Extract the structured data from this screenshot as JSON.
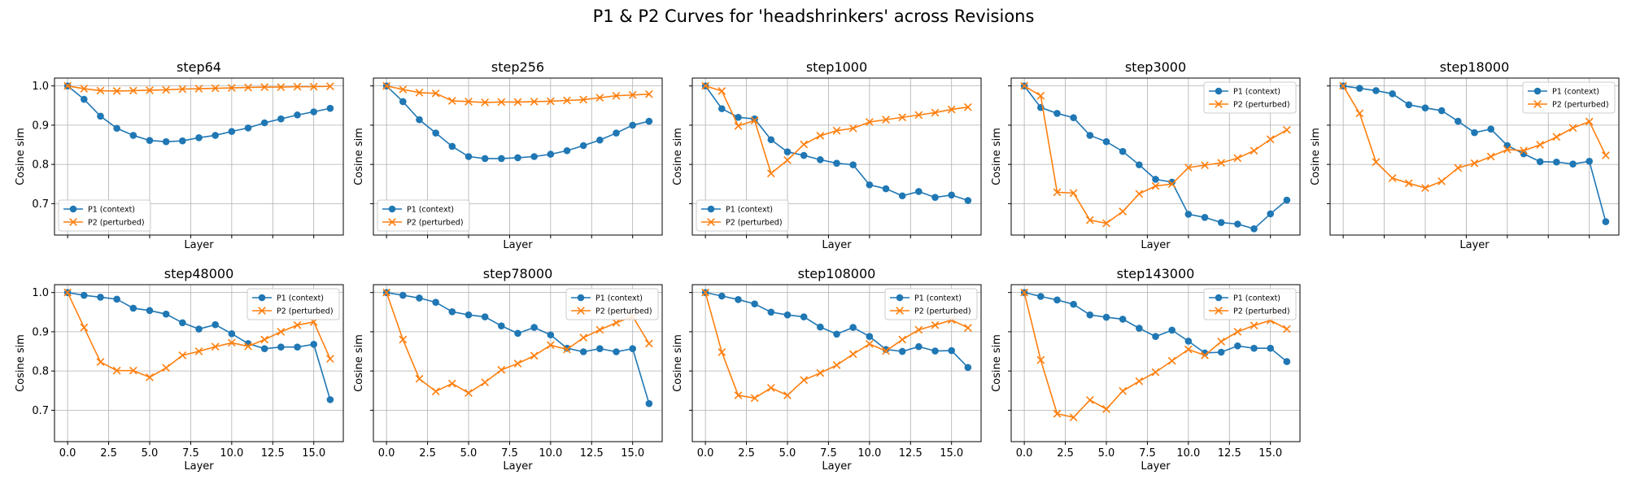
{
  "title": "P1 & P2 Curves for 'headshrinkers' across Revisions",
  "colors": {
    "p1": "#1f77b4",
    "p2": "#ff7f0e",
    "grid": "#b0b0b0"
  },
  "chart_data": [
    {
      "type": "line",
      "title": "step64",
      "xlabel": "Layer",
      "ylabel": "Cosine sim",
      "xlim": [
        -0.8,
        16.8
      ],
      "ylim": [
        0.62,
        1.02
      ],
      "x_ticks_labeled": false,
      "y_ticks_labeled": true,
      "legend": "lower left",
      "x": [
        0,
        1,
        2,
        3,
        4,
        5,
        6,
        7,
        8,
        9,
        10,
        11,
        12,
        13,
        14,
        15,
        16
      ],
      "series": [
        {
          "name": "P1 (context)",
          "marker": "o",
          "values": [
            1.0,
            0.966,
            0.923,
            0.892,
            0.874,
            0.861,
            0.858,
            0.86,
            0.868,
            0.874,
            0.884,
            0.893,
            0.906,
            0.916,
            0.926,
            0.934,
            0.943
          ]
        },
        {
          "name": "P2 (perturbed)",
          "marker": "x",
          "values": [
            1.0,
            0.993,
            0.988,
            0.987,
            0.988,
            0.989,
            0.99,
            0.992,
            0.993,
            0.994,
            0.995,
            0.996,
            0.997,
            0.997,
            0.998,
            0.998,
            0.999
          ]
        }
      ]
    },
    {
      "type": "line",
      "title": "step256",
      "xlabel": "Layer",
      "ylabel": "Cosine sim",
      "xlim": [
        -0.8,
        16.8
      ],
      "ylim": [
        0.62,
        1.02
      ],
      "x_ticks_labeled": false,
      "y_ticks_labeled": false,
      "legend": "lower left",
      "x": [
        0,
        1,
        2,
        3,
        4,
        5,
        6,
        7,
        8,
        9,
        10,
        11,
        12,
        13,
        14,
        15,
        16
      ],
      "series": [
        {
          "name": "P1 (context)",
          "marker": "o",
          "values": [
            1.0,
            0.96,
            0.914,
            0.88,
            0.846,
            0.82,
            0.815,
            0.815,
            0.817,
            0.82,
            0.826,
            0.835,
            0.848,
            0.862,
            0.88,
            0.9,
            0.91
          ]
        },
        {
          "name": "P2 (perturbed)",
          "marker": "x",
          "values": [
            1.0,
            0.991,
            0.983,
            0.981,
            0.962,
            0.96,
            0.958,
            0.959,
            0.959,
            0.96,
            0.961,
            0.963,
            0.965,
            0.97,
            0.975,
            0.977,
            0.979
          ]
        }
      ]
    },
    {
      "type": "line",
      "title": "step1000",
      "xlabel": "Layer",
      "ylabel": "Cosine sim",
      "xlim": [
        -0.8,
        16.8
      ],
      "ylim": [
        0.62,
        1.02
      ],
      "x_ticks_labeled": false,
      "y_ticks_labeled": false,
      "legend": "lower left",
      "x": [
        0,
        1,
        2,
        3,
        4,
        5,
        6,
        7,
        8,
        9,
        10,
        11,
        12,
        13,
        14,
        15,
        16
      ],
      "series": [
        {
          "name": "P1 (context)",
          "marker": "o",
          "values": [
            1.0,
            0.942,
            0.92,
            0.916,
            0.863,
            0.832,
            0.823,
            0.812,
            0.803,
            0.799,
            0.748,
            0.738,
            0.72,
            0.731,
            0.716,
            0.722,
            0.708
          ]
        },
        {
          "name": "P2 (perturbed)",
          "marker": "x",
          "values": [
            1.0,
            0.987,
            0.898,
            0.912,
            0.777,
            0.811,
            0.851,
            0.873,
            0.886,
            0.892,
            0.908,
            0.914,
            0.92,
            0.926,
            0.932,
            0.94,
            0.946
          ]
        }
      ]
    },
    {
      "type": "line",
      "title": "step3000",
      "xlabel": "Layer",
      "ylabel": "Cosine sim",
      "xlim": [
        -0.8,
        16.8
      ],
      "ylim": [
        0.62,
        1.02
      ],
      "x_ticks_labeled": false,
      "y_ticks_labeled": false,
      "legend": "upper right",
      "x": [
        0,
        1,
        2,
        3,
        4,
        5,
        6,
        7,
        8,
        9,
        10,
        11,
        12,
        13,
        14,
        15,
        16
      ],
      "series": [
        {
          "name": "P1 (context)",
          "marker": "o",
          "values": [
            1.0,
            0.945,
            0.93,
            0.919,
            0.874,
            0.858,
            0.833,
            0.799,
            0.762,
            0.755,
            0.673,
            0.665,
            0.652,
            0.648,
            0.636,
            0.674,
            0.709
          ]
        },
        {
          "name": "P2 (perturbed)",
          "marker": "x",
          "values": [
            1.0,
            0.975,
            0.729,
            0.727,
            0.658,
            0.65,
            0.68,
            0.725,
            0.745,
            0.75,
            0.792,
            0.798,
            0.804,
            0.816,
            0.835,
            0.864,
            0.888
          ]
        }
      ]
    },
    {
      "type": "line",
      "title": "step18000",
      "xlabel": "Layer",
      "ylabel": "Cosine sim",
      "xlim": [
        -0.8,
        16.8
      ],
      "ylim": [
        0.62,
        1.02
      ],
      "x_ticks_labeled": false,
      "y_ticks_labeled": false,
      "legend": "upper right",
      "x": [
        0,
        1,
        2,
        3,
        4,
        5,
        6,
        7,
        8,
        9,
        10,
        11,
        12,
        13,
        14,
        15,
        16
      ],
      "series": [
        {
          "name": "P1 (context)",
          "marker": "o",
          "values": [
            1.0,
            0.994,
            0.988,
            0.98,
            0.952,
            0.944,
            0.937,
            0.91,
            0.881,
            0.89,
            0.848,
            0.827,
            0.807,
            0.806,
            0.801,
            0.808,
            0.654
          ]
        },
        {
          "name": "P2 (perturbed)",
          "marker": "x",
          "values": [
            1.0,
            0.93,
            0.806,
            0.765,
            0.752,
            0.74,
            0.757,
            0.791,
            0.803,
            0.82,
            0.838,
            0.835,
            0.85,
            0.87,
            0.893,
            0.909,
            0.823
          ]
        }
      ]
    },
    {
      "type": "line",
      "title": "step48000",
      "xlabel": "Layer",
      "ylabel": "Cosine sim",
      "xlim": [
        -0.8,
        16.8
      ],
      "ylim": [
        0.62,
        1.02
      ],
      "x_ticks_labeled": true,
      "y_ticks_labeled": true,
      "legend": "upper right",
      "x": [
        0,
        1,
        2,
        3,
        4,
        5,
        6,
        7,
        8,
        9,
        10,
        11,
        12,
        13,
        14,
        15,
        16
      ],
      "series": [
        {
          "name": "P1 (context)",
          "marker": "o",
          "values": [
            1.0,
            0.993,
            0.988,
            0.983,
            0.96,
            0.954,
            0.945,
            0.923,
            0.907,
            0.918,
            0.895,
            0.87,
            0.857,
            0.861,
            0.861,
            0.868,
            0.727
          ]
        },
        {
          "name": "P2 (perturbed)",
          "marker": "x",
          "values": [
            1.0,
            0.911,
            0.823,
            0.801,
            0.801,
            0.784,
            0.808,
            0.84,
            0.85,
            0.862,
            0.872,
            0.863,
            0.88,
            0.9,
            0.917,
            0.925,
            0.831
          ]
        }
      ]
    },
    {
      "type": "line",
      "title": "step78000",
      "xlabel": "Layer",
      "ylabel": "Cosine sim",
      "xlim": [
        -0.8,
        16.8
      ],
      "ylim": [
        0.62,
        1.02
      ],
      "x_ticks_labeled": true,
      "y_ticks_labeled": false,
      "legend": "upper right",
      "x": [
        0,
        1,
        2,
        3,
        4,
        5,
        6,
        7,
        8,
        9,
        10,
        11,
        12,
        13,
        14,
        15,
        16
      ],
      "series": [
        {
          "name": "P1 (context)",
          "marker": "o",
          "values": [
            1.0,
            0.993,
            0.986,
            0.975,
            0.951,
            0.943,
            0.938,
            0.915,
            0.896,
            0.911,
            0.892,
            0.858,
            0.849,
            0.857,
            0.849,
            0.857,
            0.717
          ]
        },
        {
          "name": "P2 (perturbed)",
          "marker": "x",
          "values": [
            1.0,
            0.88,
            0.78,
            0.748,
            0.768,
            0.744,
            0.771,
            0.803,
            0.819,
            0.839,
            0.866,
            0.855,
            0.885,
            0.905,
            0.923,
            0.939,
            0.87
          ]
        }
      ]
    },
    {
      "type": "line",
      "title": "step108000",
      "xlabel": "Layer",
      "ylabel": "Cosine sim",
      "xlim": [
        -0.8,
        16.8
      ],
      "ylim": [
        0.62,
        1.02
      ],
      "x_ticks_labeled": true,
      "y_ticks_labeled": false,
      "legend": "upper right",
      "x": [
        0,
        1,
        2,
        3,
        4,
        5,
        6,
        7,
        8,
        9,
        10,
        11,
        12,
        13,
        14,
        15,
        16
      ],
      "series": [
        {
          "name": "P1 (context)",
          "marker": "o",
          "values": [
            1.0,
            0.991,
            0.982,
            0.971,
            0.95,
            0.943,
            0.938,
            0.912,
            0.894,
            0.911,
            0.888,
            0.855,
            0.85,
            0.862,
            0.851,
            0.852,
            0.809
          ]
        },
        {
          "name": "P2 (perturbed)",
          "marker": "x",
          "values": [
            1.0,
            0.848,
            0.738,
            0.731,
            0.757,
            0.738,
            0.777,
            0.795,
            0.815,
            0.843,
            0.869,
            0.851,
            0.88,
            0.905,
            0.917,
            0.93,
            0.91
          ]
        }
      ]
    },
    {
      "type": "line",
      "title": "step143000",
      "xlabel": "Layer",
      "ylabel": "Cosine sim",
      "xlim": [
        -0.8,
        16.8
      ],
      "ylim": [
        0.62,
        1.02
      ],
      "x_ticks_labeled": true,
      "y_ticks_labeled": false,
      "legend": "upper right",
      "x": [
        0,
        1,
        2,
        3,
        4,
        5,
        6,
        7,
        8,
        9,
        10,
        11,
        12,
        13,
        14,
        15,
        16
      ],
      "series": [
        {
          "name": "P1 (context)",
          "marker": "o",
          "values": [
            1.0,
            0.99,
            0.981,
            0.97,
            0.943,
            0.937,
            0.932,
            0.909,
            0.888,
            0.904,
            0.876,
            0.846,
            0.848,
            0.864,
            0.858,
            0.858,
            0.824
          ]
        },
        {
          "name": "P2 (perturbed)",
          "marker": "x",
          "values": [
            1.0,
            0.828,
            0.691,
            0.682,
            0.726,
            0.703,
            0.749,
            0.774,
            0.797,
            0.826,
            0.855,
            0.84,
            0.875,
            0.9,
            0.916,
            0.929,
            0.907
          ]
        }
      ]
    }
  ]
}
